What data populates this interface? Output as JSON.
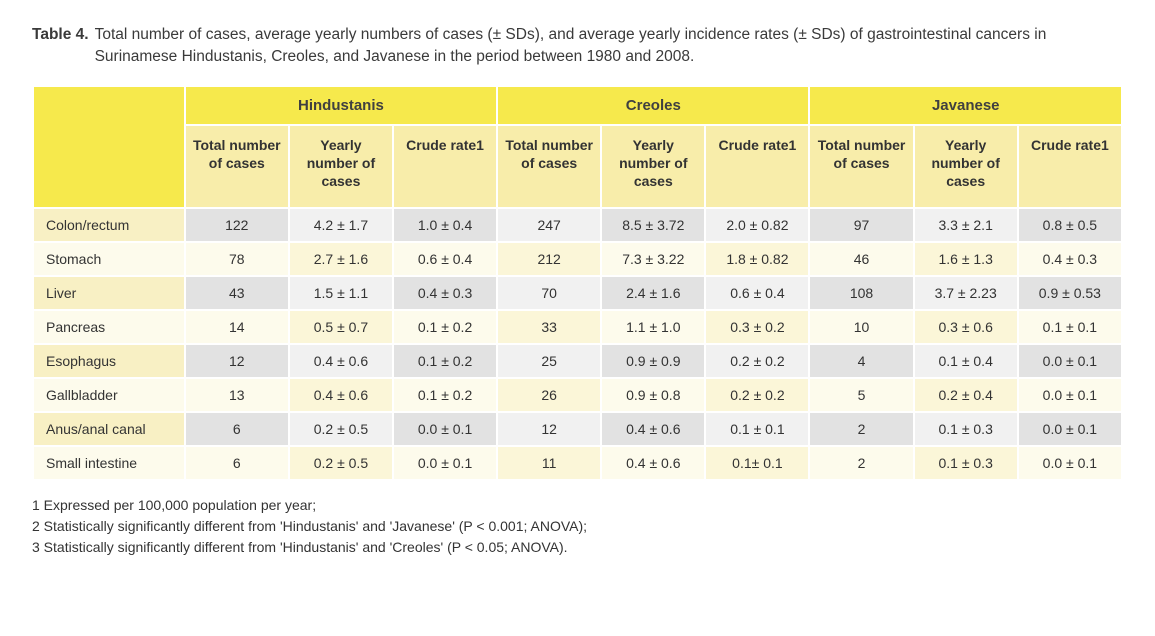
{
  "caption": {
    "label": "Table 4.",
    "text": "Total number of cases, average yearly numbers of cases (± SDs), and average yearly incidence rates (± SDs) of gastrointestinal cancers in Surinamese Hindustanis, Creoles, and Javanese in the period between 1980 and 2008."
  },
  "colors": {
    "group_header_bg": "#f6e94c",
    "sub_header_bg": "#f8edaa",
    "stripe_yellow_a": "#faf4ce",
    "stripe_yellow_b": "#fdfcf1",
    "stripe_grey_a": "#e0e0e0",
    "stripe_grey_b": "#f3f3f3",
    "text": "#333333"
  },
  "groups": [
    "Hindustanis",
    "Creoles",
    "Javanese"
  ],
  "sub_headers": [
    "Total number of cases",
    "Yearly number of cases",
    "Crude rate1"
  ],
  "rows": [
    {
      "label": "Colon/rectum",
      "cells": [
        "122",
        "4.2 ± 1.7",
        "1.0 ± 0.4",
        "247",
        "8.5 ± 3.72",
        "2.0 ± 0.82",
        "97",
        "3.3 ± 2.1",
        "0.8 ± 0.5"
      ]
    },
    {
      "label": "Stomach",
      "cells": [
        "78",
        "2.7 ± 1.6",
        "0.6 ± 0.4",
        "212",
        "7.3 ± 3.22",
        "1.8 ± 0.82",
        "46",
        "1.6 ± 1.3",
        "0.4 ± 0.3"
      ]
    },
    {
      "label": "Liver",
      "cells": [
        "43",
        "1.5 ± 1.1",
        "0.4 ± 0.3",
        "70",
        "2.4 ± 1.6",
        "0.6 ± 0.4",
        "108",
        "3.7 ± 2.23",
        "0.9 ± 0.53"
      ]
    },
    {
      "label": "Pancreas",
      "cells": [
        "14",
        "0.5 ± 0.7",
        "0.1 ± 0.2",
        "33",
        "1.1 ± 1.0",
        "0.3 ± 0.2",
        "10",
        "0.3 ± 0.6",
        "0.1 ± 0.1"
      ]
    },
    {
      "label": "Esophagus",
      "cells": [
        "12",
        "0.4 ± 0.6",
        "0.1 ± 0.2",
        "25",
        "0.9 ± 0.9",
        "0.2 ± 0.2",
        "4",
        "0.1 ± 0.4",
        "0.0 ± 0.1"
      ]
    },
    {
      "label": "Gallbladder",
      "cells": [
        "13",
        "0.4 ± 0.6",
        "0.1 ± 0.2",
        "26",
        "0.9 ± 0.8",
        "0.2 ± 0.2",
        "5",
        "0.2 ± 0.4",
        "0.0 ± 0.1"
      ]
    },
    {
      "label": "Anus/anal canal",
      "cells": [
        "6",
        "0.2 ± 0.5",
        "0.0 ± 0.1",
        "12",
        "0.4 ± 0.6",
        "0.1 ± 0.1",
        "2",
        "0.1 ± 0.3",
        "0.0 ± 0.1"
      ]
    },
    {
      "label": "Small intestine",
      "cells": [
        "6",
        "0.2 ± 0.5",
        "0.0 ± 0.1",
        "11",
        "0.4 ± 0.6",
        "0.1± 0.1",
        "2",
        "0.1 ± 0.3",
        "0.0 ± 0.1"
      ]
    }
  ],
  "footnotes": [
    "1  Expressed per 100,000 population per year;",
    "2  Statistically significantly different from 'Hindustanis' and 'Javanese' (P < 0.001; ANOVA);",
    "3  Statistically significantly different from 'Hindustanis' and 'Creoles' (P < 0.05; ANOVA)."
  ]
}
